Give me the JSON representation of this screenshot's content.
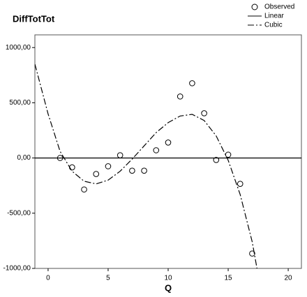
{
  "chart_data": {
    "type": "scatter",
    "title": "DiffTotTot",
    "x_label": "Q",
    "xlim": [
      -1.1,
      21.1
    ],
    "ylim": [
      -1000,
      1115
    ],
    "xticks": [
      0,
      5,
      10,
      15,
      20
    ],
    "yticks": [
      {
        "value": 1000,
        "label": "1000,00"
      },
      {
        "value": 500,
        "label": "500,00"
      },
      {
        "value": 0,
        "label": "0,00"
      },
      {
        "value": -500,
        "label": "-500,00"
      },
      {
        "value": -1000,
        "label": "-1000,00"
      }
    ],
    "series": [
      {
        "name": "Observed",
        "kind": "marker",
        "color": "#000000",
        "x": [
          1,
          2,
          3,
          4,
          5,
          6,
          7,
          8,
          9,
          10,
          11,
          12,
          13,
          14,
          15,
          16,
          17
        ],
        "values": [
          0,
          -85,
          -285,
          -145,
          -75,
          25,
          -115,
          -115,
          70,
          140,
          557,
          677,
          405,
          -18,
          30,
          -234,
          -865
        ]
      },
      {
        "name": "Linear",
        "kind": "line",
        "dash": "solid",
        "color": "#000000",
        "x": [
          -1.1,
          21.1
        ],
        "values": [
          0,
          0
        ]
      },
      {
        "name": "Cubic",
        "kind": "line",
        "dash": "dash-dot",
        "color": "#000000",
        "x": [
          -1.1,
          0,
          1,
          2,
          3,
          4,
          5,
          6,
          7,
          8,
          9,
          10,
          11,
          12,
          13,
          14,
          15,
          16,
          17,
          17.4
        ],
        "values": [
          850,
          400,
          60,
          -120,
          -210,
          -235,
          -200,
          -120,
          -10,
          110,
          230,
          320,
          380,
          395,
          340,
          200,
          -20,
          -330,
          -760,
          -1000
        ]
      }
    ]
  }
}
